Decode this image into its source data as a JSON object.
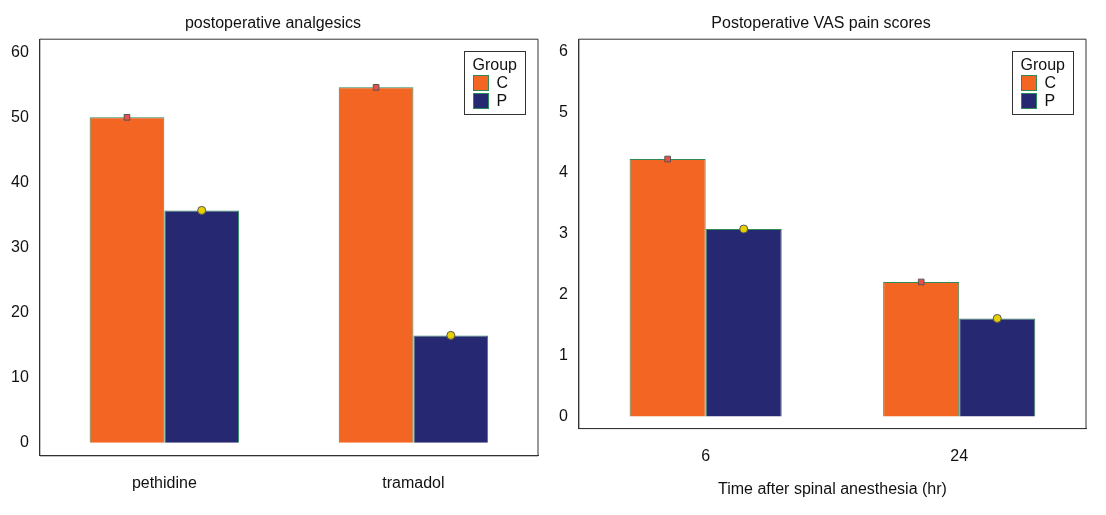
{
  "chart_data": [
    {
      "type": "bar",
      "title": "postoperative analgesics",
      "categories": [
        "pethidine",
        "tramadol"
      ],
      "series": [
        {
          "name": "C",
          "color": "#f26522",
          "values": [
            50,
            54.6
          ]
        },
        {
          "name": "P",
          "color": "#262872",
          "values": [
            35.7,
            16.5
          ]
        },
        {
          "type": "scatter",
          "color": "#e8504a",
          "marker": "square",
          "x": [
            "pethidine",
            "tramadol"
          ],
          "values": [
            50,
            54.6
          ]
        },
        {
          "type": "scatter",
          "color": "#e8d000",
          "marker": "circle",
          "x": [
            "pethidine",
            "tramadol"
          ],
          "values": [
            35.7,
            16.5
          ]
        }
      ],
      "ylim": [
        -2,
        62
      ],
      "yticks": [
        0,
        10,
        20,
        30,
        40,
        50,
        60
      ],
      "legend": "top right",
      "legend_title": "Group",
      "grid": false
    },
    {
      "type": "bar",
      "title": "Postoperative VAS pain scores",
      "xlabel": "Time after spinal anesthesia (hr)",
      "categories": [
        "6",
        "24"
      ],
      "series": [
        {
          "name": "C",
          "color": "#f26522",
          "values": [
            4.23,
            2.21
          ]
        },
        {
          "name": "P",
          "color": "#262872",
          "values": [
            3.08,
            1.61
          ]
        },
        {
          "type": "scatter",
          "color": "#e8504a",
          "marker": "square",
          "x": [
            "6",
            "24"
          ],
          "values": [
            4.23,
            2.21
          ]
        },
        {
          "type": "scatter",
          "color": "#e8d000",
          "marker": "circle",
          "x": [
            "6",
            "24"
          ],
          "values": [
            3.08,
            1.61
          ]
        }
      ],
      "ylim": [
        -0.2,
        6.2
      ],
      "yticks": [
        0,
        1,
        2,
        3,
        4,
        5,
        6
      ],
      "legend": "top right",
      "legend_title": "Group",
      "grid": false
    }
  ]
}
